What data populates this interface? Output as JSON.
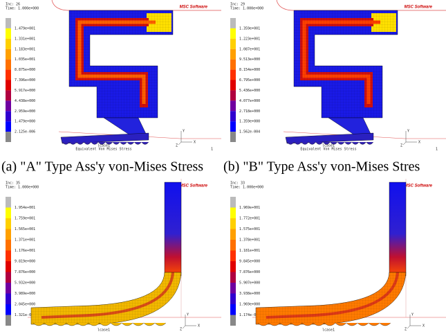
{
  "panels": [
    {
      "increment": "Inc: 26",
      "time": "Time: 1.000e+000",
      "legend": [
        "1.479e+001",
        "1.331e+001",
        "1.183e+001",
        "1.035e+001",
        "8.875e+000",
        "7.396e+000",
        "5.917e+000",
        "4.438e+000",
        "2.959e+000",
        "1.479e+000",
        "2.125e-006"
      ],
      "brand": "MSC Software",
      "load_case": "lcase1",
      "result": "Equivalent Von Mises Stress",
      "frame": "1",
      "axes": [
        "Y",
        "Z",
        "X"
      ],
      "caption": "(a) \"A\" Type  Ass'y  von-Mises Stress"
    },
    {
      "increment": "Inc: 29",
      "time": "Time: 1.000e+000",
      "legend": [
        "1.359e+001",
        "1.223e+001",
        "1.087e+001",
        "9.513e+000",
        "8.154e+000",
        "6.795e+000",
        "5.436e+000",
        "4.077e+000",
        "2.718e+000",
        "1.359e+000",
        "1.562e-004"
      ],
      "brand": "MSC Software",
      "load_case": "lcase1",
      "result": "Equivalent Von Mises Stress",
      "frame": "1",
      "axes": [
        "Y",
        "Z",
        "X"
      ],
      "caption": "(b) \"B\" Type  Ass'y von-Mises Stres"
    },
    {
      "increment": "Inc: 35",
      "time": "Time: 1.000e+000",
      "legend": [
        "1.954e+001",
        "1.759e+001",
        "1.565e+001",
        "1.371e+001",
        "1.176e+001",
        "9.819e+000",
        "7.876e+000",
        "5.932e+000",
        "3.989e+000",
        "2.045e+000",
        "1.321e-001"
      ],
      "brand": "MSC Software",
      "load_case": "lcase1",
      "axes": [
        "Y",
        "Z",
        "X"
      ]
    },
    {
      "increment": "Inc: 33",
      "time": "Time: 1.000e+000",
      "legend": [
        "1.969e+001",
        "1.772e+001",
        "1.575e+001",
        "1.378e+001",
        "1.181e+001",
        "9.845e+000",
        "7.876e+000",
        "5.907e+000",
        "3.938e+000",
        "1.969e+000",
        "1.174e-004"
      ],
      "brand": "MSC Software",
      "load_case": "lcase1",
      "axes": [
        "Y",
        "Z",
        "X"
      ]
    }
  ]
}
